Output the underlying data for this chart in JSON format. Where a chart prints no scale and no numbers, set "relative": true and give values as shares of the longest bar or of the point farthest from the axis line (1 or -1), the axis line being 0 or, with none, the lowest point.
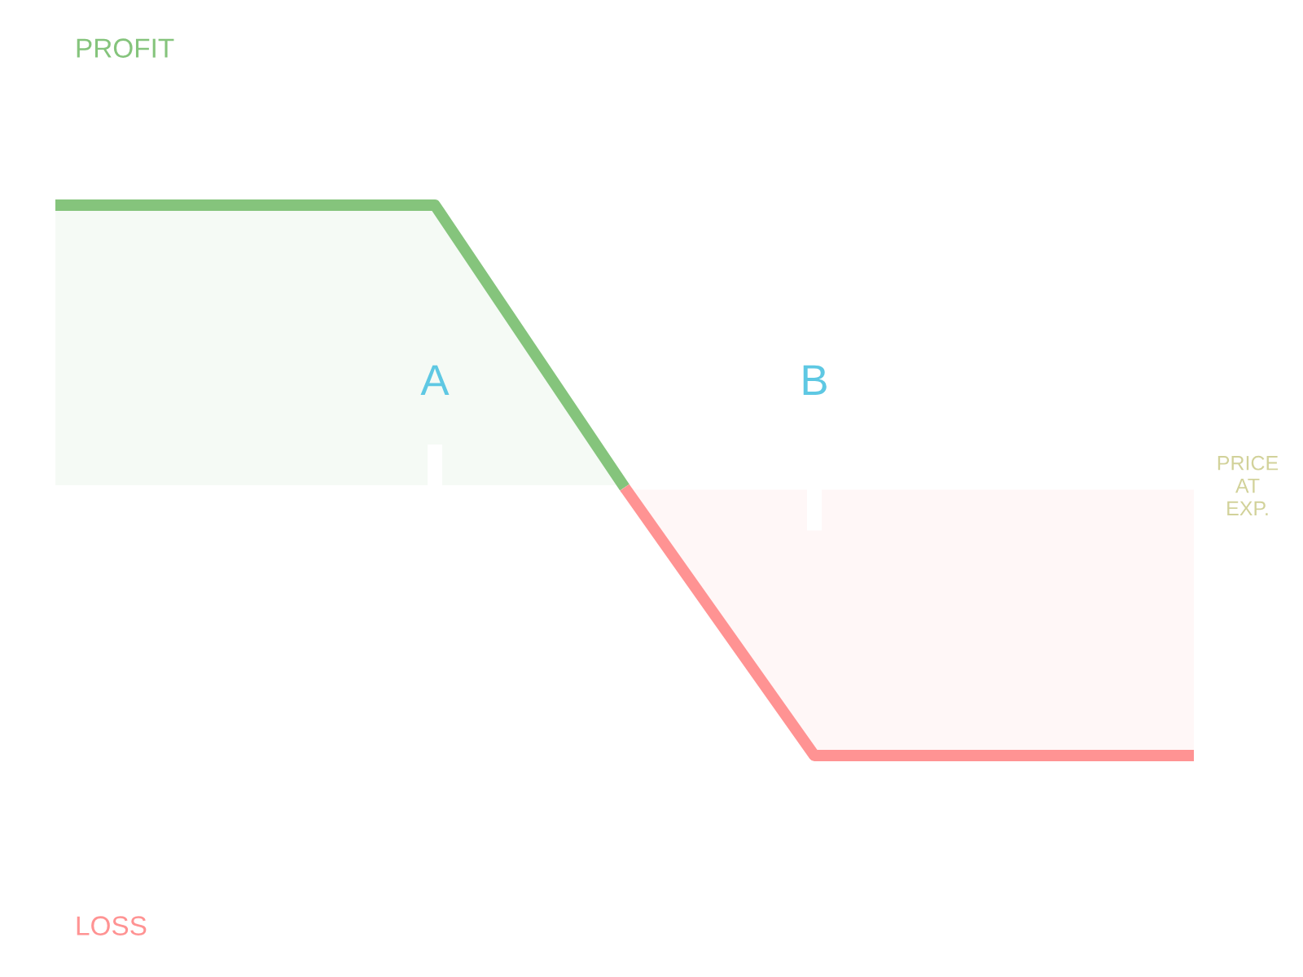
{
  "chart_data": {
    "type": "area",
    "relative": true,
    "categories": [
      null,
      null,
      "A",
      null,
      "B",
      null,
      null
    ],
    "xlabel": "PRICE AT EXP.",
    "annotations": [
      "PROFIT",
      "LOSS"
    ],
    "series": [
      {
        "color": "#85c47c",
        "values": [
          1,
          1,
          1,
          0,
          null,
          null,
          null
        ]
      },
      {
        "color": "#ff9393",
        "values": [
          null,
          null,
          null,
          0,
          -0.95,
          -0.95,
          -0.95
        ]
      }
    ]
  }
}
